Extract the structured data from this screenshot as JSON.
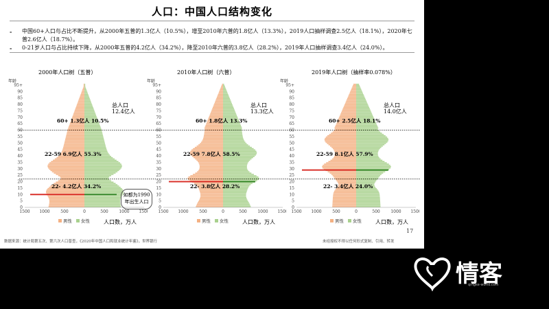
{
  "title": "人口：中国人口结构变化",
  "bullets": [
    {
      "dash": "-",
      "text": "中国60+人口与占比不断提升，从2000年五普的1.3亿人（10.5%），增至2010年六普的1.8亿人（13.3%），2019人口抽样调查2.5亿人（18.1%），2020年七普2.6亿人（18.7%）。"
    },
    {
      "dash": "-",
      "text": "0-21岁人口与占比持续下降，从2000年五普的4.2亿人（34.2%），降至2010年六普的3.8亿人（28.2%），2019年人口抽样调查3.4亿人（24.0%）。"
    }
  ],
  "axis": {
    "y_title": "年龄",
    "y_ticks": [
      "95+",
      "90",
      "85",
      "80",
      "75",
      "70",
      "65",
      "60",
      "55",
      "50",
      "45",
      "40",
      "35",
      "30",
      "25",
      "20",
      "15",
      "10",
      "5",
      "0"
    ],
    "x_ticks": [
      "1500",
      "1000",
      "500",
      "0",
      "500",
      "1000",
      "1500"
    ],
    "unit": "人口数，万人",
    "legend_male": "男性",
    "legend_female": "女性"
  },
  "colors": {
    "male": "#f4b183",
    "female": "#a9d18e",
    "highlight_male": "#d9302a",
    "highlight_female": "#3a8a2e",
    "dotted": "#000000"
  },
  "charts": [
    {
      "title": "2000年人口树（五普）",
      "total_line1": "总人口",
      "total_line2": "12.4亿人",
      "ann_60": "60+  1.3亿人 10.5%",
      "ann_2259": "22-59  6.9亿人 55.3%",
      "ann_22": "22-  4.2亿人 34.2%",
      "highlight_age": 10,
      "shape": "y2000"
    },
    {
      "title": "2010年人口树（六普）",
      "total_line1": "总人口",
      "total_line2": "13.3亿人",
      "ann_60": "60+  1.8亿人 13.3%",
      "ann_2259": "22-59  7.8亿人 58.5%",
      "ann_22": "22-  3.8亿人 28.2%",
      "highlight_age": 20,
      "shape": "y2010"
    },
    {
      "title": "2019年人口树（抽样率0.078%）",
      "total_line1": "总人口",
      "total_line2": "14.0亿人",
      "ann_60": "60+  2.5亿人 18.1%",
      "ann_2259": "22-59  8.1亿人 57.9%",
      "ann_22": "22-  3.4亿人 24.0%",
      "highlight_age": 29,
      "shape": "y2019"
    }
  ],
  "callout": {
    "line1": "如都为1990",
    "line2": "年出生人口"
  },
  "page_number": "17",
  "footer_left": "数据来源：统计局第五次、第六次人口普查，《2020年中国人口和就业统计年鉴》，世界银行",
  "footer_right": "未经授权不得以任何形式复制、引用、转发",
  "logo": {
    "text": "情客",
    "sub": "qingke-world.com"
  }
}
